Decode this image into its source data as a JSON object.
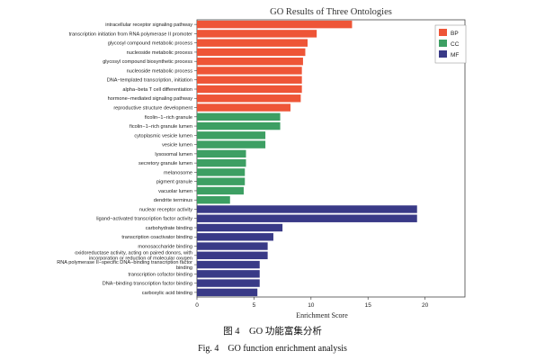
{
  "chart_data": {
    "type": "bar",
    "orientation": "horizontal",
    "title": "GO Results of Three Ontologies",
    "xlabel": "Enrichment Score",
    "ylabel": "",
    "xlim": [
      0,
      23.5
    ],
    "xticks": [
      0,
      5,
      10,
      15,
      20
    ],
    "grid": false,
    "legend_position": "top-right",
    "legend": [
      {
        "label": "BP",
        "color": "#ee5537"
      },
      {
        "label": "CC",
        "color": "#3d9f63"
      },
      {
        "label": "MF",
        "color": "#393a87"
      }
    ],
    "series": [
      {
        "name": "BP",
        "color": "#ee5537",
        "categories": [
          "intracellular receptor signaling pathway",
          "transcription initiation from RNA polymerase II promoter",
          "glycosyl compound metabolic process",
          "nucleoside metabolic process",
          "glycosyl compound biosynthetic process",
          "nucleoside metabolic process",
          "DNA−templated transcription, initiation",
          "alpha−beta T cell differentiation",
          "hormone−mediated signaling pathway",
          "reproductive structure development"
        ],
        "values": [
          13.6,
          10.5,
          9.7,
          9.5,
          9.3,
          9.2,
          9.2,
          9.2,
          9.1,
          8.2
        ]
      },
      {
        "name": "CC",
        "color": "#3d9f63",
        "categories": [
          "ficolin−1−rich granule",
          "ficolin−1−rich granule lumen",
          "cytoplasmic vesicle lumen",
          "vesicle lumen",
          "lysosomal lumen",
          "secretory granule lumen",
          "melanosome",
          "pigment granule",
          "vacuolar lumen",
          "dendrite terminus"
        ],
        "values": [
          7.3,
          7.3,
          6.0,
          6.0,
          4.3,
          4.3,
          4.2,
          4.2,
          4.1,
          2.9
        ]
      },
      {
        "name": "MF",
        "color": "#393a87",
        "categories": [
          "nuclear receptor activity",
          "ligand−activated transcription factor activity",
          "carbohydrate binding",
          "transcription coactivator binding",
          "monosaccharide binding",
          "oxidoreductase activity, acting on paired donors, with incorporation or reduction of molecular oxygen",
          "RNA polymerase II−specific DNA−binding transcription factor binding",
          "transcription cofactor binding",
          "DNA−binding transcription factor binding",
          "carboxylic acid binding"
        ],
        "values": [
          19.3,
          19.3,
          7.5,
          6.7,
          6.2,
          6.2,
          5.5,
          5.5,
          5.5,
          5.3
        ]
      }
    ]
  },
  "caption": {
    "chinese": "图 4　GO 功能富集分析",
    "english": "Fig. 4　GO function enrichment analysis"
  }
}
